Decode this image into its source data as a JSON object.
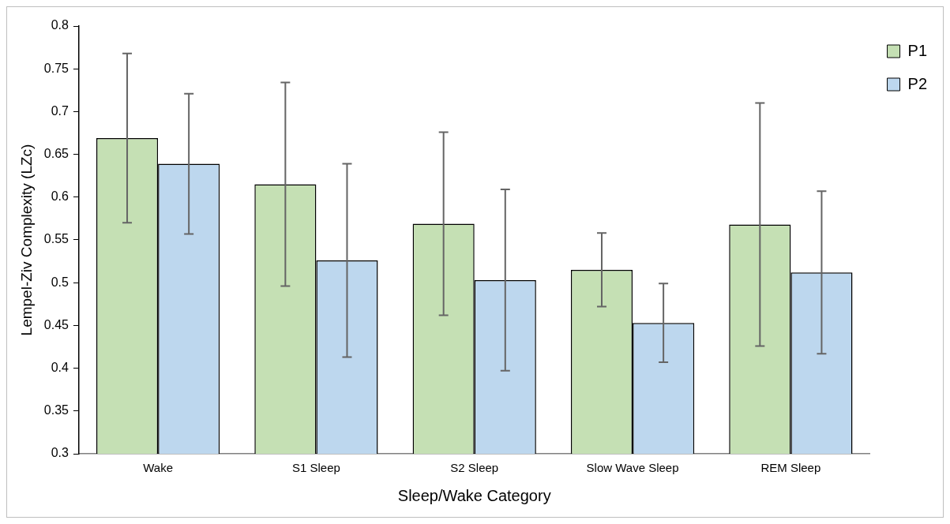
{
  "chart_data": {
    "type": "bar",
    "xlabel": "Sleep/Wake Category",
    "ylabel": "Lempel-Ziv Complexity (LZc)",
    "categories": [
      "Wake",
      "S1 Sleep",
      "S2 Sleep",
      "Slow Wave Sleep",
      "REM Sleep"
    ],
    "series": [
      {
        "name": "P1",
        "color": "#c5e0b4",
        "values": [
          0.669,
          0.615,
          0.569,
          0.515,
          0.568
        ],
        "errors": [
          0.099,
          0.119,
          0.107,
          0.043,
          0.142
        ]
      },
      {
        "name": "P2",
        "color": "#bdd7ee",
        "values": [
          0.639,
          0.526,
          0.503,
          0.453,
          0.512
        ],
        "errors": [
          0.082,
          0.113,
          0.106,
          0.046,
          0.095
        ]
      }
    ],
    "ylim": [
      0.3,
      0.8
    ],
    "yticks": [
      0.3,
      0.35,
      0.4,
      0.45,
      0.5,
      0.55,
      0.6,
      0.65,
      0.7,
      0.75,
      0.8
    ],
    "grid": false,
    "legend": "top right"
  }
}
